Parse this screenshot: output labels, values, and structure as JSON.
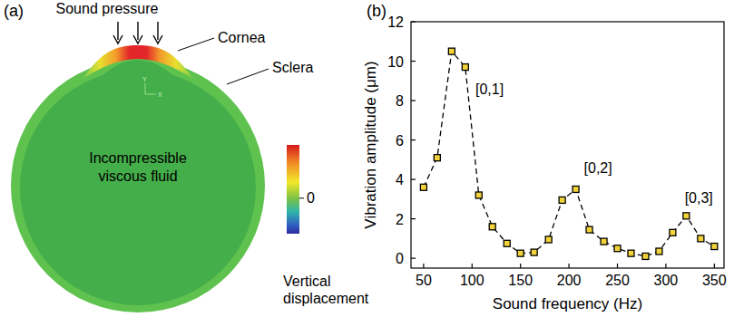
{
  "diagram": {
    "letter": "(a)",
    "sound_pressure": "Sound pressure",
    "cornea": "Cornea",
    "sclera": "Sclera",
    "fluid": "Incompressible viscous fluid",
    "triad": [
      "Y",
      "X"
    ],
    "colorbar": {
      "title": "Vertical displacement",
      "ticks": [
        0
      ]
    }
  },
  "chart_data": {
    "letter": "(b)",
    "type": "line",
    "xlabel": "Sound frequency (Hz)",
    "ylabel": "Vibration amplitude (μm)",
    "x": [
      50,
      64,
      79,
      93,
      107,
      121,
      136,
      150,
      164,
      179,
      193,
      207,
      221,
      236,
      250,
      264,
      279,
      293,
      307,
      321,
      336,
      350
    ],
    "series": [
      {
        "color": "#000000",
        "marker": "square",
        "line_style": "dashed",
        "values": [
          3.6,
          5.1,
          10.5,
          9.7,
          3.2,
          1.6,
          0.75,
          0.25,
          0.3,
          0.95,
          2.95,
          3.5,
          1.45,
          0.85,
          0.5,
          0.25,
          0.1,
          0.35,
          1.3,
          2.15,
          1.0,
          0.6
        ]
      }
    ],
    "xlim": [
      37,
      360
    ],
    "ylim": [
      -0.5,
      12
    ],
    "xticks": [
      50,
      100,
      150,
      200,
      250,
      300,
      350
    ],
    "yticks": [
      0,
      2,
      4,
      6,
      8,
      10,
      12
    ],
    "grid": false,
    "annotations": [
      {
        "text": "[0,1]",
        "x": 118,
        "y": 8.6
      },
      {
        "text": "[0,2]",
        "x": 230,
        "y": 4.6
      },
      {
        "text": "[0,3]",
        "x": 334,
        "y": 3.1
      }
    ]
  }
}
